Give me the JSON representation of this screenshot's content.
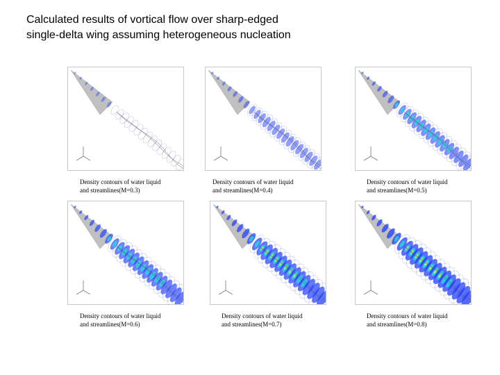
{
  "title": {
    "line1": "Calculated results of vortical flow over sharp-edged",
    "line2": "single-delta wing assuming heterogeneous nucleation"
  },
  "panels": [
    {
      "mach": 0.3,
      "caption_line1": "Density contours of water liquid",
      "caption_line2": "and streamlines(M=0.3)",
      "intensity": 0.1
    },
    {
      "mach": 0.4,
      "caption_line1": "Density contours of water liquid",
      "caption_line2": "and streamlines(M=0.4)",
      "intensity": 0.35
    },
    {
      "mach": 0.5,
      "caption_line1": "Density contours of water liquid",
      "caption_line2": "and streamlines(M=0.5)",
      "intensity": 0.55
    },
    {
      "mach": 0.6,
      "caption_line1": "Density contours of water liquid",
      "caption_line2": "and streamlines(M=0.6)",
      "intensity": 0.75
    },
    {
      "mach": 0.7,
      "caption_line1": "Density contours of water liquid",
      "caption_line2": "and streamlines(M=0.7)",
      "intensity": 0.9
    },
    {
      "mach": 0.8,
      "caption_line1": "Density contours of water liquid",
      "caption_line2": "and streamlines(M=0.8)",
      "intensity": 1.0
    }
  ],
  "colors": {
    "streamline_low": "#9aa0d8",
    "contour_blue": "#1f3cff",
    "contour_cyan": "#19e0d8",
    "contour_yellow": "#e8f03a",
    "wing_gray": "#8c8c8c"
  }
}
